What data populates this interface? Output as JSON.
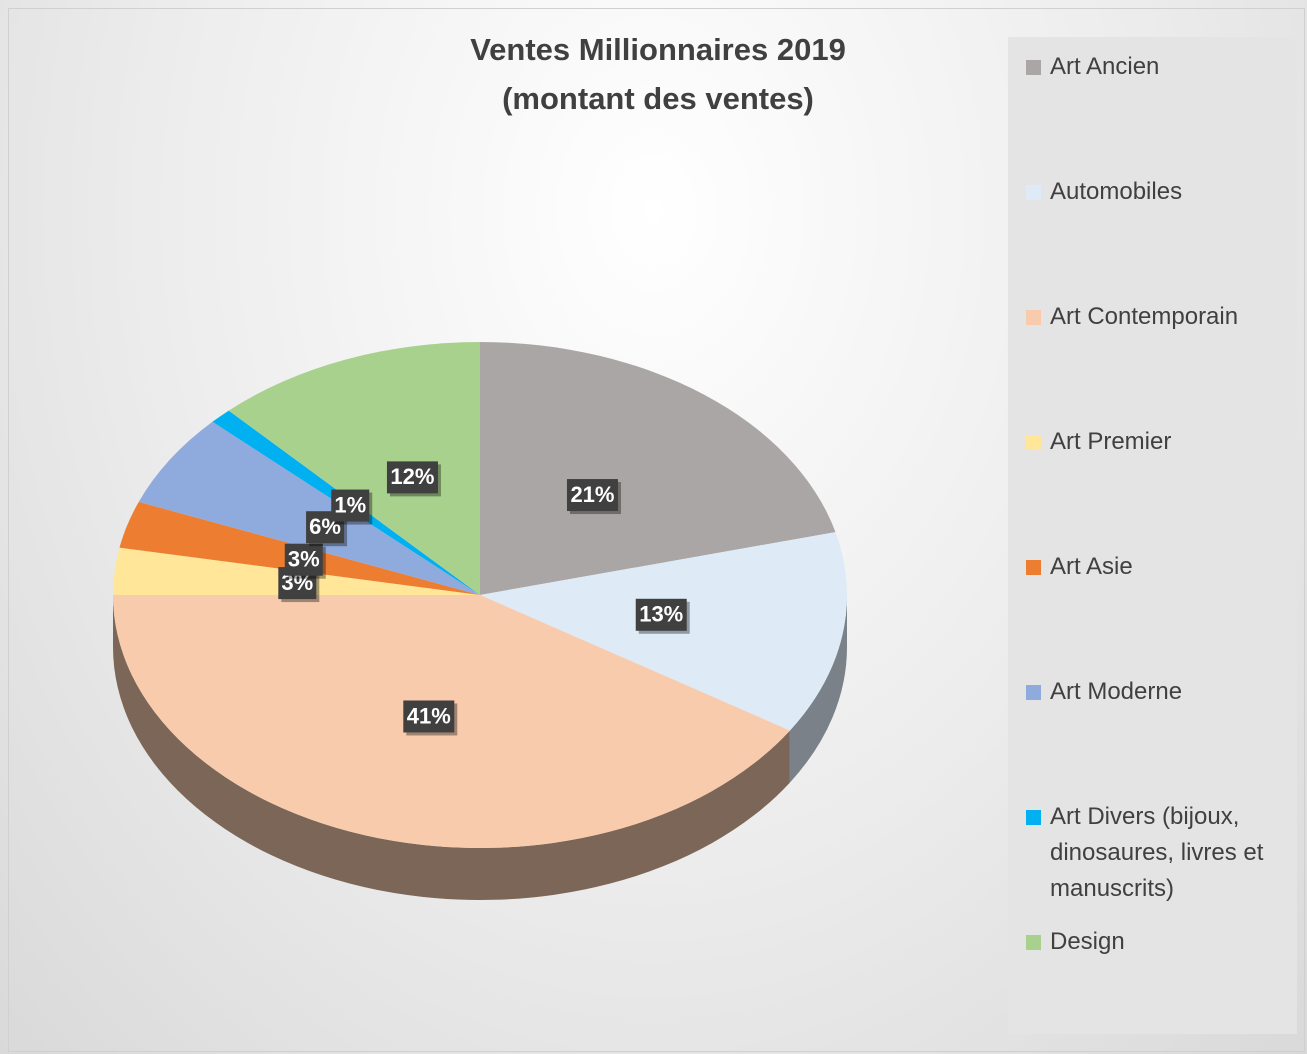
{
  "chart_data": {
    "type": "pie",
    "title": [
      "Ventes Millionnaires 2019",
      "(montant des ventes)"
    ],
    "categories": [
      "Art Ancien",
      "Automobiles",
      "Art Contemporain",
      "Art Premier",
      "Art Asie",
      "Art Moderne",
      "Art Divers (bijoux, dinosaures, livres et manuscrits)",
      "Design"
    ],
    "values": [
      21,
      13,
      41,
      3,
      3,
      6,
      1,
      12
    ],
    "value_labels": [
      "21%",
      "13%",
      "41%",
      "3%",
      "3%",
      "6%",
      "1%",
      "12%"
    ],
    "colors": [
      "#aaa6a5",
      "#deebf7",
      "#f8cbad",
      "#ffe699",
      "#ed7d31",
      "#8faadc",
      "#00b0f0",
      "#a9d18e"
    ],
    "legend": "right"
  }
}
